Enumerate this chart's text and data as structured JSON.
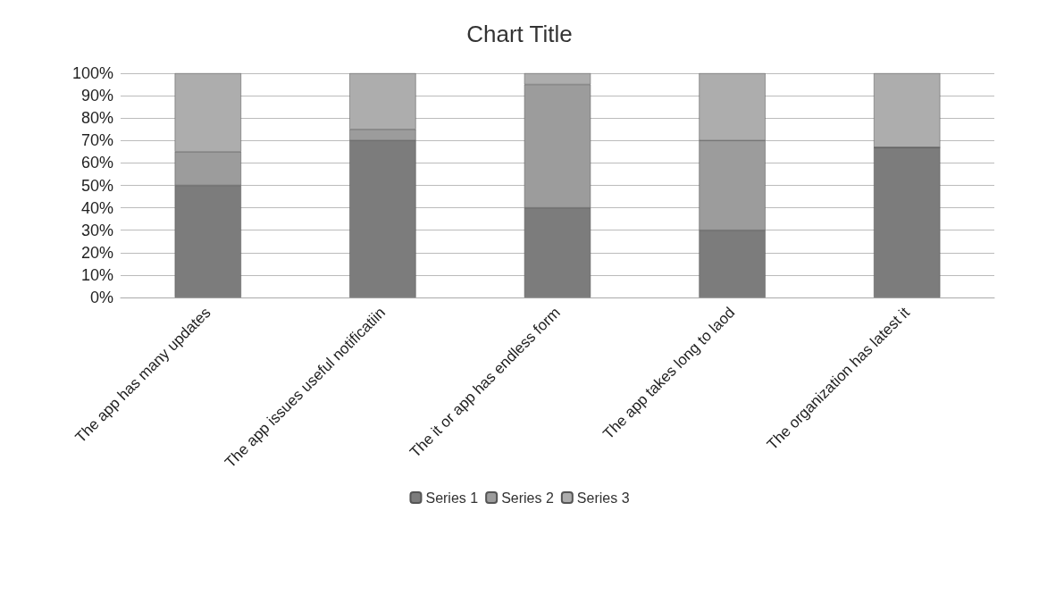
{
  "chart_data": {
    "type": "bar",
    "title": "Chart Title",
    "stacked": true,
    "categories": [
      "The app has many updates",
      "The app issues useful notificatiin",
      "The it or app has endless form",
      "The app takes long to laod",
      "The organization has latest it"
    ],
    "series": [
      {
        "name": "Series 1",
        "color": "#7c7c7c",
        "values": [
          50,
          70,
          40,
          30,
          67
        ]
      },
      {
        "name": "Series 2",
        "color": "#9c9c9c",
        "values": [
          15,
          5,
          55,
          40,
          0
        ]
      },
      {
        "name": "Series 3",
        "color": "#adadad",
        "values": [
          35,
          25,
          5,
          30,
          33
        ]
      }
    ],
    "ylim": [
      0,
      100
    ],
    "yticks": [
      {
        "value": 0,
        "label": "0%"
      },
      {
        "value": 10,
        "label": "10%"
      },
      {
        "value": 20,
        "label": "20%"
      },
      {
        "value": 30,
        "label": "30%"
      },
      {
        "value": 40,
        "label": "40%"
      },
      {
        "value": 50,
        "label": "50%"
      },
      {
        "value": 60,
        "label": "60%"
      },
      {
        "value": 70,
        "label": "70%"
      },
      {
        "value": 80,
        "label": "80%"
      },
      {
        "value": 90,
        "label": "90%"
      },
      {
        "value": 100,
        "label": "100%"
      }
    ],
    "grid": "y",
    "legend": "bottom"
  }
}
